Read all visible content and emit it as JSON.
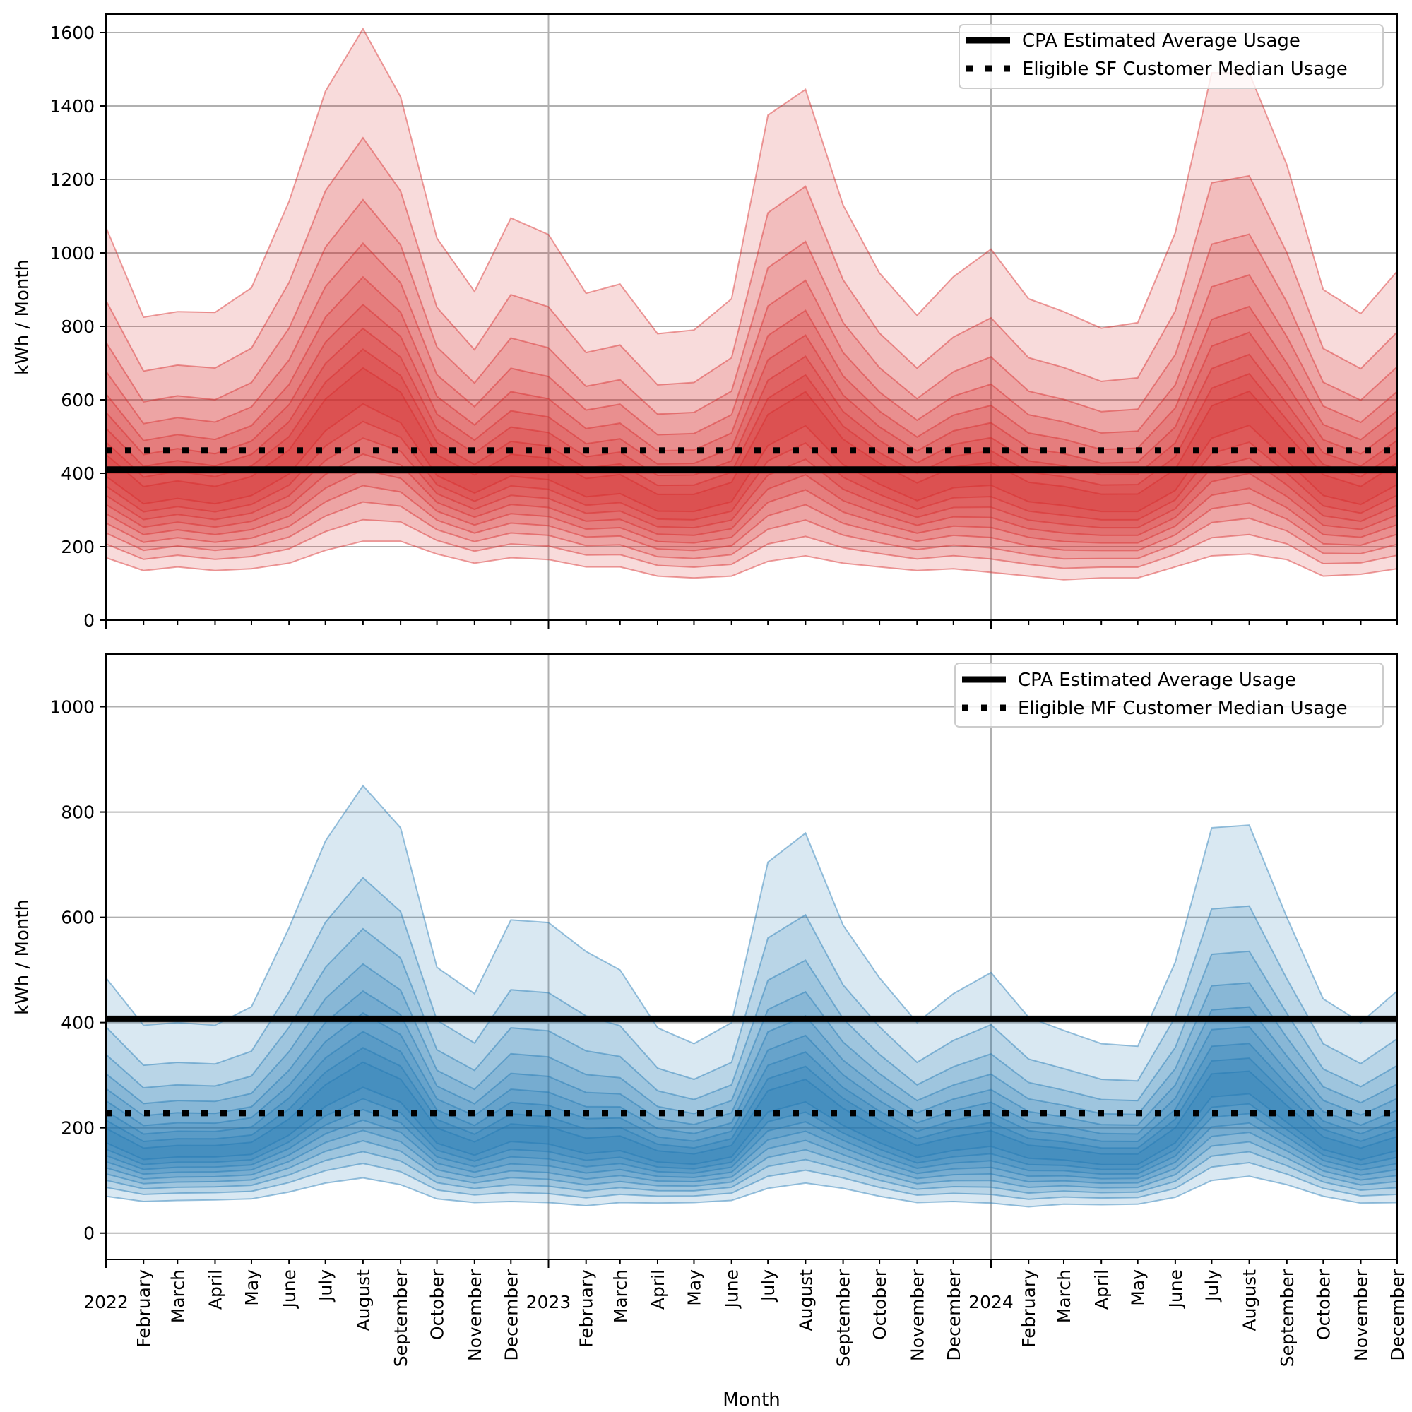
{
  "chart_data": [
    {
      "type": "area",
      "subtype": "fan-chart",
      "title": "",
      "xlabel": "",
      "ylabel": "kWh / Month",
      "ylim": [
        0,
        1650
      ],
      "yticks": [
        0,
        200,
        400,
        600,
        800,
        1000,
        1200,
        1400,
        1600
      ],
      "grid": true,
      "legend_position": "top-right",
      "color": "#d62728",
      "percentile_levels": [
        5,
        10,
        15,
        20,
        25,
        30,
        35,
        40,
        45,
        50,
        55,
        60,
        65,
        70,
        75,
        80,
        85,
        90,
        95
      ],
      "x": [
        "2022-01",
        "2022-02",
        "2022-03",
        "2022-04",
        "2022-05",
        "2022-06",
        "2022-07",
        "2022-08",
        "2022-09",
        "2022-10",
        "2022-11",
        "2022-12",
        "2023-01",
        "2023-02",
        "2023-03",
        "2023-04",
        "2023-05",
        "2023-06",
        "2023-07",
        "2023-08",
        "2023-09",
        "2023-10",
        "2023-11",
        "2023-12",
        "2024-01",
        "2024-02",
        "2024-03",
        "2024-04",
        "2024-05",
        "2024-06",
        "2024-07",
        "2024-08",
        "2024-09",
        "2024-10",
        "2024-11",
        "2024-12"
      ],
      "p95": [
        1070,
        825,
        840,
        838,
        905,
        1140,
        1440,
        1610,
        1425,
        1040,
        895,
        1095,
        1050,
        890,
        915,
        780,
        790,
        875,
        1375,
        1445,
        1130,
        945,
        830,
        935,
        1010,
        875,
        840,
        795,
        810,
        1055,
        1490,
        1490,
        1240,
        900,
        835,
        950
      ],
      "p50": [
        420,
        340,
        355,
        340,
        365,
        430,
        560,
        640,
        580,
        420,
        370,
        420,
        410,
        360,
        370,
        320,
        320,
        350,
        520,
        580,
        460,
        400,
        350,
        390,
        400,
        350,
        340,
        320,
        320,
        380,
        540,
        580,
        470,
        370,
        340,
        400
      ],
      "p5": [
        170,
        135,
        145,
        135,
        140,
        155,
        190,
        215,
        215,
        180,
        155,
        170,
        165,
        145,
        145,
        120,
        115,
        120,
        160,
        175,
        155,
        145,
        135,
        140,
        130,
        120,
        110,
        115,
        115,
        145,
        175,
        180,
        165,
        120,
        125,
        140
      ],
      "hlines": [
        {
          "name": "CPA Estimated Average Usage",
          "value": 410,
          "style": "solid"
        },
        {
          "name": "Eligible SF Customer Median Usage",
          "value": 462,
          "style": "dotted"
        }
      ],
      "legend": [
        "CPA Estimated Average Usage",
        "Eligible SF Customer Median Usage"
      ]
    },
    {
      "type": "area",
      "subtype": "fan-chart",
      "title": "",
      "xlabel": "Month",
      "ylabel": "kWh / Month",
      "ylim": [
        -50,
        1100
      ],
      "yticks": [
        0,
        200,
        400,
        600,
        800,
        1000
      ],
      "grid": true,
      "legend_position": "top-right",
      "color": "#1f77b4",
      "percentile_levels": [
        5,
        10,
        15,
        20,
        25,
        30,
        35,
        40,
        45,
        50,
        55,
        60,
        65,
        70,
        75,
        80,
        85,
        90,
        95
      ],
      "x": [
        "2022-01",
        "2022-02",
        "2022-03",
        "2022-04",
        "2022-05",
        "2022-06",
        "2022-07",
        "2022-08",
        "2022-09",
        "2022-10",
        "2022-11",
        "2022-12",
        "2023-01",
        "2023-02",
        "2023-03",
        "2023-04",
        "2023-05",
        "2023-06",
        "2023-07",
        "2023-08",
        "2023-09",
        "2023-10",
        "2023-11",
        "2023-12",
        "2024-01",
        "2024-02",
        "2024-03",
        "2024-04",
        "2024-05",
        "2024-06",
        "2024-07",
        "2024-08",
        "2024-09",
        "2024-10",
        "2024-11",
        "2024-12"
      ],
      "p95": [
        485,
        395,
        400,
        395,
        430,
        580,
        745,
        850,
        770,
        505,
        455,
        595,
        590,
        535,
        500,
        390,
        360,
        400,
        705,
        760,
        585,
        485,
        400,
        455,
        495,
        410,
        385,
        360,
        355,
        515,
        770,
        775,
        600,
        445,
        400,
        460
      ],
      "p50": [
        185,
        150,
        155,
        155,
        160,
        200,
        260,
        300,
        270,
        185,
        160,
        190,
        185,
        165,
        170,
        145,
        140,
        155,
        250,
        270,
        220,
        185,
        155,
        170,
        180,
        155,
        150,
        140,
        140,
        185,
        280,
        285,
        225,
        170,
        150,
        170
      ],
      "p5": [
        70,
        60,
        62,
        63,
        65,
        78,
        95,
        105,
        92,
        65,
        58,
        60,
        58,
        52,
        58,
        57,
        58,
        62,
        85,
        95,
        85,
        70,
        58,
        60,
        57,
        50,
        55,
        54,
        55,
        68,
        100,
        108,
        92,
        70,
        57,
        58
      ],
      "hlines": [
        {
          "name": "CPA Estimated Average Usage",
          "value": 407,
          "style": "solid"
        },
        {
          "name": "Eligible MF Customer Median Usage",
          "value": 228,
          "style": "dotted"
        }
      ],
      "legend": [
        "CPA Estimated Average Usage",
        "Eligible MF Customer Median Usage"
      ]
    }
  ],
  "axes": {
    "ylabel": "kWh / Month",
    "xlabel": "Month",
    "xtick_labels": [
      "2022",
      "February",
      "March",
      "April",
      "May",
      "June",
      "July",
      "August",
      "September",
      "October",
      "November",
      "December",
      "2023",
      "February",
      "March",
      "April",
      "May",
      "June",
      "July",
      "August",
      "September",
      "October",
      "November",
      "December",
      "2024",
      "February",
      "March",
      "April",
      "May",
      "June",
      "July",
      "August",
      "September",
      "October",
      "November",
      "December"
    ],
    "year_labels": [
      "2022",
      "2023",
      "2024"
    ]
  },
  "legend_top": {
    "item1": "CPA Estimated Average Usage",
    "item2": "Eligible SF Customer Median Usage"
  },
  "legend_bottom": {
    "item1": "CPA Estimated Average Usage",
    "item2": "Eligible MF Customer Median Usage"
  }
}
